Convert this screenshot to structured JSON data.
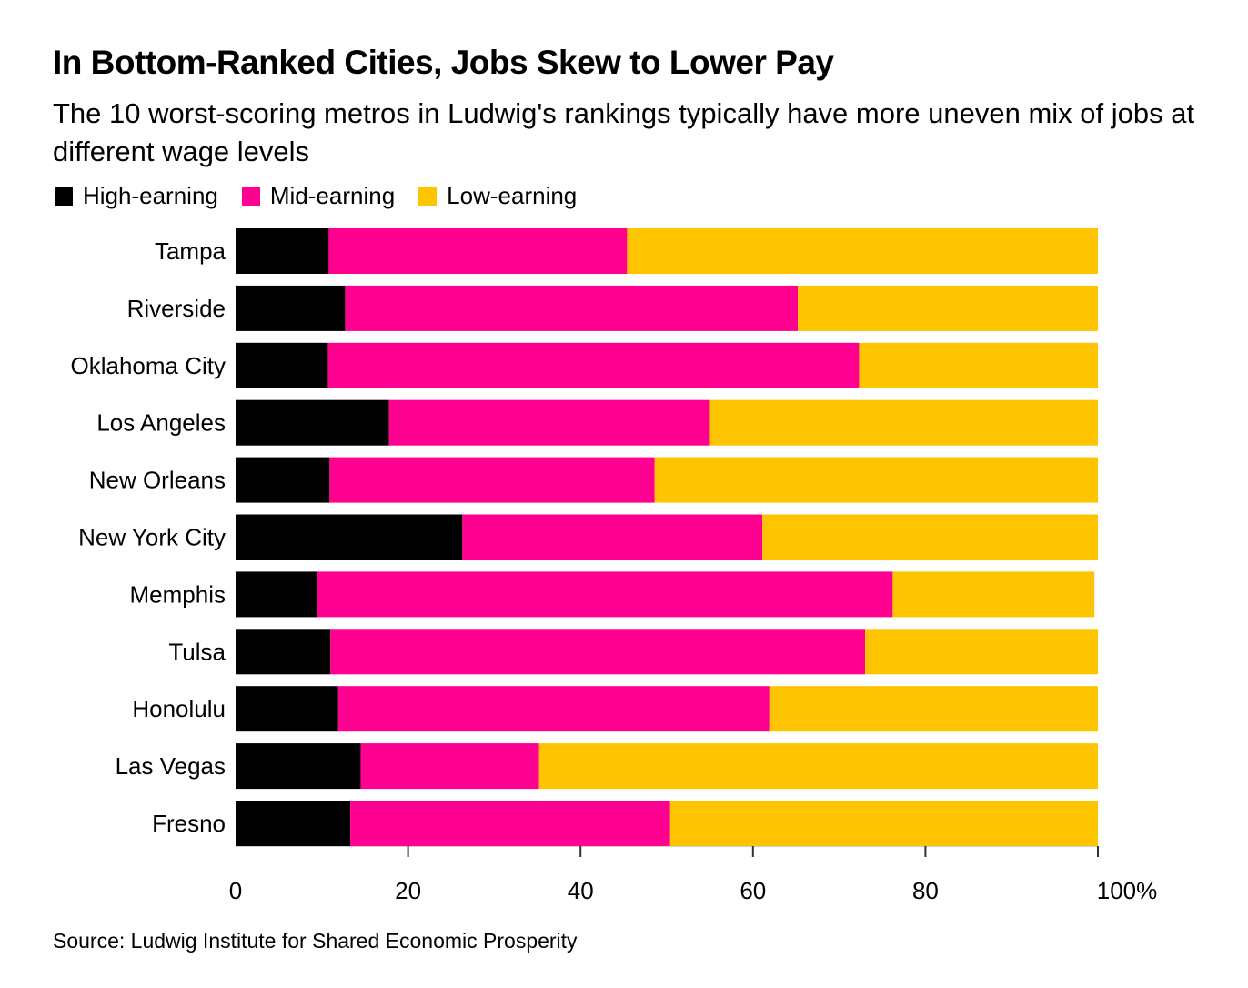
{
  "title": "In Bottom-Ranked Cities, Jobs Skew to Lower Pay",
  "subtitle": "The 10 worst-scoring metros in Ludwig's rankings typically have more uneven mix of jobs at different wage levels",
  "source": "Source: Ludwig Institute for Shared Economic Prosperity",
  "colors": {
    "high": "#000000",
    "mid": "#ff0090",
    "low": "#ffc400"
  },
  "chart_data": {
    "type": "bar",
    "orientation": "horizontal",
    "stacked": true,
    "title": "In Bottom-Ranked Cities, Jobs Skew to Lower Pay",
    "subtitle": "The 10 worst-scoring metros in Ludwig's rankings typically have more uneven mix of jobs at different wage levels",
    "xlabel": "",
    "ylabel": "",
    "xlim": [
      0,
      100
    ],
    "x_ticks": [
      0,
      20,
      40,
      60,
      80,
      100
    ],
    "x_tick_labels": [
      "0",
      "20",
      "40",
      "60",
      "80",
      "100%"
    ],
    "grid": false,
    "legend_position": "top-left",
    "categories": [
      "Tampa",
      "Riverside",
      "Oklahoma City",
      "Los Angeles",
      "New Orleans",
      "New York City",
      "Memphis",
      "Tulsa",
      "Honolulu",
      "Las Vegas",
      "Fresno"
    ],
    "series": [
      {
        "name": "High-earning",
        "color": "#000000",
        "values": [
          10.8,
          12.7,
          10.7,
          17.8,
          10.9,
          26.3,
          9.4,
          11.0,
          11.9,
          14.5,
          13.3
        ]
      },
      {
        "name": "Mid-earning",
        "color": "#ff0090",
        "values": [
          34.6,
          52.5,
          61.6,
          37.1,
          37.7,
          34.8,
          66.8,
          62.0,
          50.0,
          20.7,
          37.1
        ]
      },
      {
        "name": "Low-earning",
        "color": "#ffc400",
        "values": [
          54.6,
          34.8,
          27.7,
          45.1,
          51.4,
          38.9,
          23.4,
          27.0,
          38.1,
          64.8,
          49.6
        ]
      }
    ],
    "source": "Source: Ludwig Institute for Shared Economic Prosperity"
  }
}
